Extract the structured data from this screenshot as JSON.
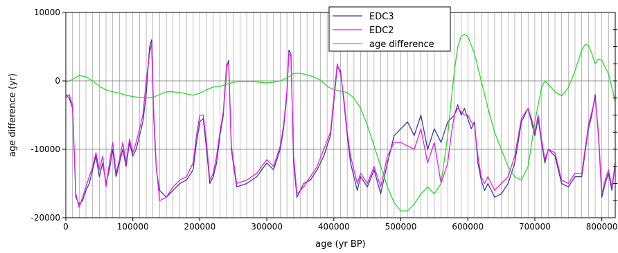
{
  "chart_data": {
    "type": "line",
    "title": "",
    "xlabel": "age (yr BP)",
    "ylabel": "age difference (yr)",
    "xlim": [
      0,
      820000
    ],
    "ylim": [
      -20000,
      10000
    ],
    "x_ticks": [
      0,
      100000,
      200000,
      300000,
      400000,
      500000,
      600000,
      700000,
      800000
    ],
    "x_tick_labels": [
      "0",
      "100000",
      "200000",
      "300000",
      "400000",
      "500000",
      "600000",
      "700000",
      "800000"
    ],
    "y_ticks": [
      -20000,
      -10000,
      0,
      10000
    ],
    "y_tick_labels": [
      "-20000",
      "-10000",
      "0",
      "10000"
    ],
    "grid": "dense vertical lines every 10000 yr; horizontal lines at y ticks",
    "legend_position": "top-center",
    "series": [
      {
        "name": "EDC3",
        "color": "#3b3b9a",
        "x": [
          0,
          5000,
          10000,
          15000,
          20000,
          25000,
          30000,
          35000,
          40000,
          45000,
          50000,
          55000,
          60000,
          65000,
          70000,
          75000,
          80000,
          85000,
          90000,
          95000,
          100000,
          105000,
          110000,
          115000,
          120000,
          125000,
          128000,
          131000,
          135000,
          140000,
          150000,
          160000,
          170000,
          180000,
          190000,
          195000,
          200000,
          205000,
          210000,
          215000,
          220000,
          225000,
          230000,
          235000,
          240000,
          243000,
          247000,
          255000,
          270000,
          285000,
          300000,
          310000,
          320000,
          325000,
          330000,
          333000,
          336000,
          340000,
          345000,
          355000,
          365000,
          375000,
          385000,
          395000,
          400000,
          405000,
          410000,
          415000,
          420000,
          425000,
          430000,
          435000,
          440000,
          450000,
          460000,
          470000,
          480000,
          490000,
          500000,
          510000,
          520000,
          530000,
          540000,
          550000,
          560000,
          570000,
          575000,
          580000,
          585000,
          590000,
          595000,
          600000,
          605000,
          610000,
          615000,
          620000,
          625000,
          630000,
          640000,
          650000,
          660000,
          670000,
          680000,
          690000,
          695000,
          700000,
          705000,
          710000,
          715000,
          720000,
          730000,
          740000,
          750000,
          760000,
          770000,
          780000,
          785000,
          790000,
          795000,
          800000,
          805000,
          810000,
          815000,
          820000
        ],
        "values": [
          -2000,
          -2500,
          -4000,
          -17000,
          -18000,
          -17500,
          -16000,
          -15000,
          -13000,
          -11000,
          -14000,
          -12000,
          -15000,
          -13000,
          -10000,
          -14000,
          -12000,
          -10000,
          -12500,
          -9000,
          -11000,
          -10000,
          -8000,
          -6000,
          -2000,
          5000,
          6000,
          -5000,
          -13000,
          -16000,
          -17000,
          -16000,
          -15000,
          -14500,
          -13000,
          -9000,
          -6000,
          -5500,
          -10000,
          -15000,
          -14000,
          -12000,
          -8000,
          -5000,
          2000,
          3000,
          -10000,
          -15500,
          -15000,
          -14000,
          -12000,
          -13000,
          -10000,
          -7000,
          -2000,
          4500,
          4000,
          -12000,
          -17000,
          -15000,
          -14500,
          -13000,
          -11000,
          -8000,
          -3000,
          2000,
          1500,
          -3000,
          -8000,
          -12000,
          -14000,
          -16000,
          -14000,
          -15500,
          -13000,
          -16500,
          -12000,
          -8000,
          -7000,
          -6000,
          -8000,
          -5000,
          -10000,
          -7000,
          -9000,
          -6000,
          -5500,
          -5000,
          -3500,
          -5000,
          -4000,
          -5500,
          -7000,
          -6000,
          -12000,
          -14500,
          -16000,
          -15000,
          -17000,
          -16500,
          -15000,
          -12000,
          -6000,
          -4000,
          -6000,
          -8000,
          -5500,
          -9000,
          -12000,
          -10000,
          -11000,
          -15000,
          -15500,
          -14000,
          -14000,
          -7000,
          -5000,
          -2000,
          -8000,
          -17000,
          -15000,
          -13500,
          -16000,
          -12000
        ]
      },
      {
        "name": "EDC2",
        "color": "#e81be8",
        "x": [
          0,
          5000,
          10000,
          15000,
          20000,
          25000,
          30000,
          35000,
          40000,
          45000,
          50000,
          55000,
          60000,
          65000,
          70000,
          75000,
          80000,
          85000,
          90000,
          95000,
          100000,
          105000,
          110000,
          115000,
          120000,
          125000,
          128000,
          131000,
          135000,
          140000,
          150000,
          160000,
          170000,
          180000,
          190000,
          195000,
          200000,
          205000,
          210000,
          215000,
          220000,
          225000,
          230000,
          235000,
          240000,
          243000,
          247000,
          255000,
          270000,
          285000,
          300000,
          310000,
          320000,
          325000,
          330000,
          333000,
          336000,
          340000,
          345000,
          355000,
          365000,
          375000,
          385000,
          395000,
          400000,
          405000,
          410000,
          415000,
          420000,
          425000,
          430000,
          435000,
          440000,
          450000,
          460000,
          470000,
          480000,
          490000,
          500000,
          510000,
          520000,
          530000,
          540000,
          550000,
          560000,
          570000,
          575000,
          580000,
          585000,
          590000,
          595000,
          600000,
          605000,
          610000,
          615000,
          620000,
          625000,
          630000,
          640000,
          650000,
          660000,
          670000,
          680000,
          690000,
          695000,
          700000,
          705000,
          710000,
          715000,
          720000,
          730000,
          740000,
          750000,
          760000,
          770000,
          780000,
          785000,
          790000,
          795000,
          800000,
          805000,
          810000,
          815000,
          820000
        ],
        "values": [
          -2500,
          -2000,
          -3500,
          -16500,
          -18500,
          -17000,
          -15500,
          -14000,
          -12500,
          -10500,
          -13000,
          -11000,
          -15500,
          -12000,
          -9000,
          -13500,
          -11500,
          -9000,
          -12000,
          -8500,
          -10500,
          -9000,
          -7000,
          -5000,
          0,
          4000,
          5500,
          -4000,
          -12500,
          -17500,
          -17000,
          -15500,
          -14500,
          -14000,
          -12000,
          -8000,
          -5000,
          -5000,
          -9000,
          -14500,
          -13500,
          -11000,
          -7500,
          -4500,
          2500,
          2500,
          -9500,
          -15000,
          -14500,
          -13500,
          -11500,
          -12500,
          -9500,
          -6500,
          -1500,
          4000,
          3500,
          -11000,
          -16500,
          -15500,
          -14000,
          -12500,
          -10000,
          -7500,
          -2500,
          2500,
          1000,
          -2500,
          -7500,
          -11000,
          -13000,
          -15000,
          -13500,
          -15000,
          -12500,
          -15500,
          -11000,
          -9000,
          -9000,
          -9500,
          -10000,
          -7000,
          -12000,
          -9000,
          -15000,
          -12000,
          -8000,
          -5000,
          -4000,
          -4500,
          -5000,
          -5000,
          -6000,
          -6500,
          -11000,
          -14000,
          -15000,
          -14000,
          -16000,
          -15000,
          -14000,
          -11000,
          -5500,
          -4000,
          -5500,
          -7500,
          -5000,
          -8500,
          -11500,
          -10000,
          -10500,
          -14500,
          -15000,
          -13500,
          -13500,
          -6500,
          -4500,
          -2500,
          -7500,
          -16500,
          -14500,
          -13000,
          -15500,
          -12000
        ]
      },
      {
        "name": "age difference",
        "color": "#22dd22",
        "x": [
          0,
          10000,
          20000,
          30000,
          40000,
          50000,
          60000,
          70000,
          80000,
          90000,
          100000,
          110000,
          120000,
          130000,
          140000,
          150000,
          160000,
          170000,
          180000,
          190000,
          200000,
          210000,
          220000,
          230000,
          240000,
          250000,
          260000,
          280000,
          300000,
          310000,
          320000,
          330000,
          340000,
          350000,
          360000,
          370000,
          380000,
          390000,
          400000,
          410000,
          420000,
          430000,
          440000,
          450000,
          460000,
          470000,
          480000,
          490000,
          500000,
          510000,
          520000,
          530000,
          540000,
          550000,
          560000,
          570000,
          575000,
          580000,
          585000,
          590000,
          595000,
          600000,
          610000,
          620000,
          630000,
          640000,
          650000,
          660000,
          670000,
          680000,
          690000,
          700000,
          710000,
          715000,
          720000,
          730000,
          740000,
          750000,
          760000,
          765000,
          770000,
          775000,
          780000,
          785000,
          790000,
          795000,
          800000,
          810000,
          820000
        ],
        "values": [
          -200,
          200,
          800,
          600,
          0,
          -800,
          -1300,
          -1600,
          -1800,
          -2100,
          -2300,
          -2400,
          -2500,
          -2400,
          -2000,
          -1600,
          -1600,
          -1700,
          -1900,
          -2100,
          -1800,
          -1300,
          -900,
          -800,
          -500,
          -200,
          -100,
          -100,
          -300,
          -200,
          0,
          400,
          1100,
          1100,
          900,
          600,
          100,
          -800,
          -1300,
          -1500,
          -1700,
          -2500,
          -4000,
          -6500,
          -9500,
          -12500,
          -15500,
          -17800,
          -19000,
          -19000,
          -18000,
          -16500,
          -15500,
          -16500,
          -15000,
          -8000,
          -3000,
          1500,
          5000,
          6500,
          6800,
          6500,
          4000,
          0,
          -4000,
          -7500,
          -10000,
          -12500,
          -14000,
          -14500,
          -12500,
          -6000,
          -1000,
          0,
          -500,
          -1600,
          -2200,
          -1000,
          1500,
          3000,
          4500,
          5300,
          5200,
          4000,
          2500,
          3200,
          3000,
          1000,
          -3000
        ]
      }
    ]
  }
}
